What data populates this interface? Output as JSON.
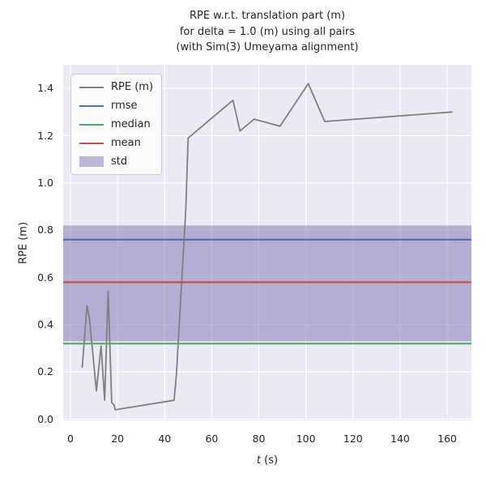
{
  "figure": {
    "title_lines": [
      "RPE w.r.t. translation part (m)",
      "for delta = 1.0 (m) using all pairs",
      "(with Sim(3) Umeyama alignment)"
    ],
    "xlabel": {
      "prefix_italic": "t",
      "suffix": " (s)"
    },
    "ylabel": "RPE (m)"
  },
  "legend": {
    "items": [
      {
        "label": "RPE (m)",
        "type": "line",
        "color": "#7f7f7f"
      },
      {
        "label": "rmse",
        "type": "line",
        "color": "#4C72B0"
      },
      {
        "label": "median",
        "type": "line",
        "color": "#55A868"
      },
      {
        "label": "mean",
        "type": "line",
        "color": "#C44E52"
      },
      {
        "label": "std",
        "type": "patch",
        "color": "rgba(129,114,178,0.5)"
      }
    ]
  },
  "chart_data": {
    "type": "line",
    "title": "RPE w.r.t. translation part (m) for delta = 1.0 (m) using all pairs (with Sim(3) Umeyama alignment)",
    "xlabel": "t (s)",
    "ylabel": "RPE (m)",
    "xlim": [
      -3.1,
      170.3
    ],
    "ylim": [
      -0.005,
      1.5
    ],
    "xticks": [
      "0",
      "20",
      "40",
      "60",
      "80",
      "100",
      "120",
      "140",
      "160"
    ],
    "yticks": [
      "0.0",
      "0.2",
      "0.4",
      "0.6",
      "0.8",
      "1.0",
      "1.2",
      "1.4"
    ],
    "grid": true,
    "grid_color": "#ffffff",
    "background_color": "#EAEAF2",
    "legend_position": "upper left",
    "series": [
      {
        "name": "RPE (m)",
        "color": "#7f7f7f",
        "line_width": 1.8,
        "x": [
          5,
          7,
          8,
          11,
          13,
          14.5,
          16,
          17.5,
          18.5,
          19,
          44,
          45,
          49,
          50,
          69,
          72,
          78,
          89,
          101,
          108,
          162
        ],
        "y": [
          0.22,
          0.48,
          0.43,
          0.12,
          0.31,
          0.08,
          0.54,
          0.07,
          0.06,
          0.04,
          0.08,
          0.19,
          0.89,
          1.19,
          1.35,
          1.22,
          1.27,
          1.24,
          1.42,
          1.26,
          1.3
        ]
      }
    ],
    "statistics": {
      "rmse": {
        "value": 0.76,
        "color": "#4C72B0"
      },
      "median": {
        "value": 0.32,
        "color": "#55A868"
      },
      "mean": {
        "value": 0.58,
        "color": "#C44E52"
      },
      "std_band": {
        "lower": 0.33,
        "upper": 0.82,
        "color": "#8172B2",
        "opacity": 0.5
      }
    }
  }
}
